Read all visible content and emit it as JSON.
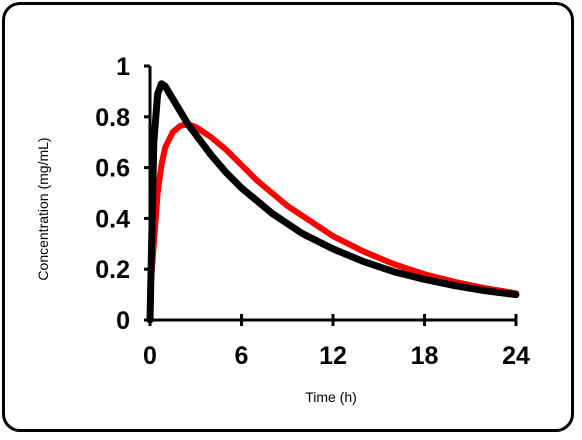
{
  "chart_data": {
    "type": "line",
    "title": "",
    "xlabel": "Time  (h)",
    "ylabel": "Concentration  (mg/mL)",
    "xlim": [
      0,
      24
    ],
    "ylim": [
      0,
      1
    ],
    "xticks": [
      0,
      6,
      12,
      18,
      24
    ],
    "yticks": [
      0,
      0.2,
      0.4,
      0.6,
      0.8,
      1
    ],
    "ytick_labels": [
      "0",
      "0.2",
      "0.4",
      "0.6",
      "0.8",
      "1"
    ],
    "grid": false,
    "legend": "none",
    "series": [
      {
        "color": "#ff0000",
        "x": [
          0,
          0.25,
          0.5,
          0.75,
          1,
          1.5,
          2,
          2.5,
          3,
          3.5,
          4,
          5,
          6,
          7,
          8,
          9,
          10,
          12,
          14,
          16,
          18,
          20,
          22,
          24
        ],
        "y": [
          0.1,
          0.3,
          0.5,
          0.61,
          0.68,
          0.74,
          0.765,
          0.77,
          0.76,
          0.74,
          0.72,
          0.67,
          0.61,
          0.55,
          0.5,
          0.45,
          0.41,
          0.33,
          0.27,
          0.22,
          0.18,
          0.15,
          0.125,
          0.105
        ]
      },
      {
        "color": "#000000",
        "x": [
          0,
          0.25,
          0.5,
          0.75,
          1,
          1.5,
          2,
          2.5,
          3,
          3.5,
          4,
          5,
          6,
          7,
          8,
          9,
          10,
          12,
          14,
          16,
          18,
          20,
          22,
          24
        ],
        "y": [
          0,
          0.7,
          0.89,
          0.93,
          0.92,
          0.87,
          0.82,
          0.77,
          0.73,
          0.69,
          0.65,
          0.58,
          0.52,
          0.47,
          0.42,
          0.38,
          0.34,
          0.28,
          0.23,
          0.19,
          0.16,
          0.135,
          0.115,
          0.1
        ]
      }
    ]
  }
}
